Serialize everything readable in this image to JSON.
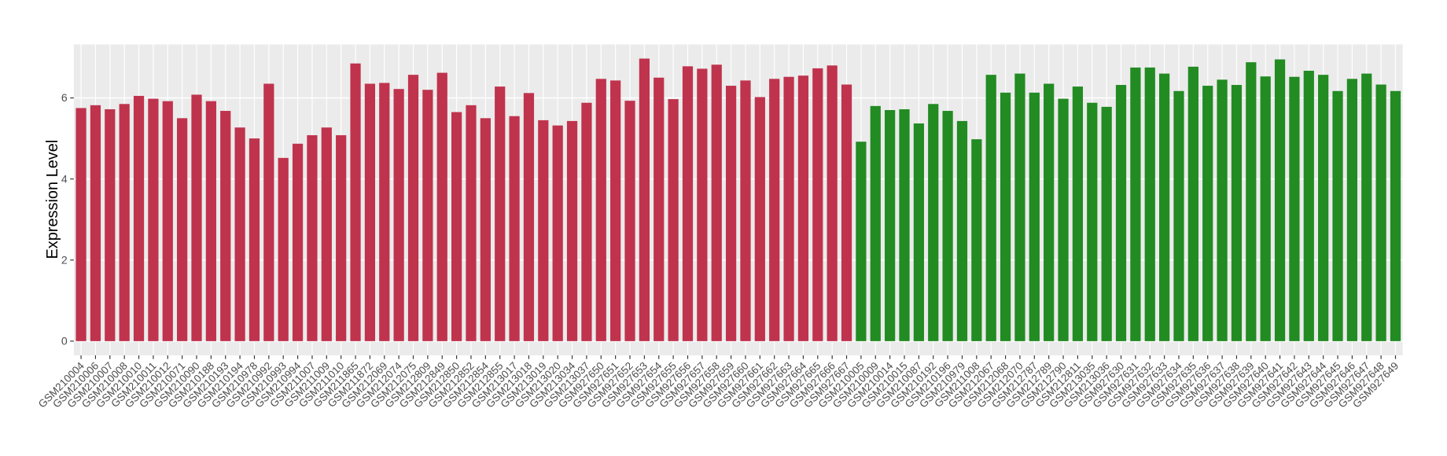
{
  "chart_data": {
    "type": "bar",
    "ylabel": "Expression Level",
    "categories": [
      "GSM210004",
      "GSM210006",
      "GSM210007",
      "GSM210008",
      "GSM210010",
      "GSM210011",
      "GSM210012",
      "GSM210071",
      "GSM210090",
      "GSM210188",
      "GSM210193",
      "GSM210194",
      "GSM210978",
      "GSM210992",
      "GSM210993",
      "GSM210994",
      "GSM211007",
      "GSM211009",
      "GSM211010",
      "GSM211865",
      "GSM211872",
      "GSM212069",
      "GSM212074",
      "GSM212075",
      "GSM212809",
      "GSM212849",
      "GSM212850",
      "GSM212852",
      "GSM212854",
      "GSM212855",
      "GSM213017",
      "GSM213018",
      "GSM213019",
      "GSM213020",
      "GSM213034",
      "GSM213037",
      "GSM927650",
      "GSM927651",
      "GSM927652",
      "GSM927653",
      "GSM927654",
      "GSM927655",
      "GSM927656",
      "GSM927657",
      "GSM927658",
      "GSM927659",
      "GSM927660",
      "GSM927661",
      "GSM927662",
      "GSM927663",
      "GSM927664",
      "GSM927665",
      "GSM927666",
      "GSM927667",
      "GSM210005",
      "GSM210009",
      "GSM210014",
      "GSM210015",
      "GSM210087",
      "GSM210192",
      "GSM210196",
      "GSM210979",
      "GSM211008",
      "GSM212067",
      "GSM212068",
      "GSM212070",
      "GSM212787",
      "GSM212789",
      "GSM212790",
      "GSM212811",
      "GSM213035",
      "GSM213036",
      "GSM927630",
      "GSM927631",
      "GSM927632",
      "GSM927633",
      "GSM927634",
      "GSM927635",
      "GSM927636",
      "GSM927637",
      "GSM927638",
      "GSM927639",
      "GSM927640",
      "GSM927641",
      "GSM927642",
      "GSM927643",
      "GSM927644",
      "GSM927645",
      "GSM927646",
      "GSM927647",
      "GSM927648",
      "GSM927649"
    ],
    "series": [
      {
        "color": "#c0334d",
        "values": [
          5.75,
          5.82,
          5.72,
          5.85,
          6.05,
          5.98,
          5.92,
          5.5,
          6.08,
          5.92,
          5.68,
          5.27,
          5.0,
          6.35,
          4.52,
          4.87,
          5.08,
          5.27,
          5.08,
          6.85,
          6.35,
          6.37,
          6.22,
          6.57,
          6.2,
          6.62,
          5.65,
          5.82,
          5.5,
          6.28,
          5.55,
          6.12,
          5.45,
          5.32,
          5.43,
          5.88,
          6.47,
          6.43,
          5.93,
          6.97,
          6.5,
          5.97,
          6.78,
          6.72,
          6.82,
          6.3,
          6.43,
          6.02,
          6.47,
          6.52,
          6.55,
          6.73,
          6.8,
          6.33,
          null,
          null,
          null,
          null,
          null,
          null,
          null,
          null,
          null,
          null,
          null,
          null,
          null,
          null,
          null,
          null,
          null,
          null,
          null,
          null,
          null,
          null,
          null,
          null,
          null,
          null,
          null,
          null,
          null,
          null,
          null,
          null,
          null,
          null,
          null,
          null,
          null,
          null
        ]
      },
      {
        "color": "#228b22",
        "values": [
          null,
          null,
          null,
          null,
          null,
          null,
          null,
          null,
          null,
          null,
          null,
          null,
          null,
          null,
          null,
          null,
          null,
          null,
          null,
          null,
          null,
          null,
          null,
          null,
          null,
          null,
          null,
          null,
          null,
          null,
          null,
          null,
          null,
          null,
          null,
          null,
          null,
          null,
          null,
          null,
          null,
          null,
          null,
          null,
          null,
          null,
          null,
          null,
          null,
          null,
          null,
          null,
          null,
          null,
          4.92,
          5.8,
          5.7,
          5.72,
          5.37,
          5.85,
          5.68,
          5.43,
          4.98,
          6.57,
          6.13,
          6.6,
          6.13,
          6.35,
          5.98,
          6.28,
          5.88,
          5.78,
          6.32,
          6.75,
          6.75,
          6.6,
          6.17,
          6.77,
          6.3,
          6.45,
          6.32,
          6.88,
          6.53,
          6.95,
          6.52,
          6.67,
          6.57,
          6.17,
          6.47,
          6.6,
          6.33,
          6.17
        ]
      }
    ],
    "ylim": [
      -0.35,
      7.32
    ],
    "yticks": [
      0,
      2,
      4,
      6
    ],
    "grid": true
  }
}
